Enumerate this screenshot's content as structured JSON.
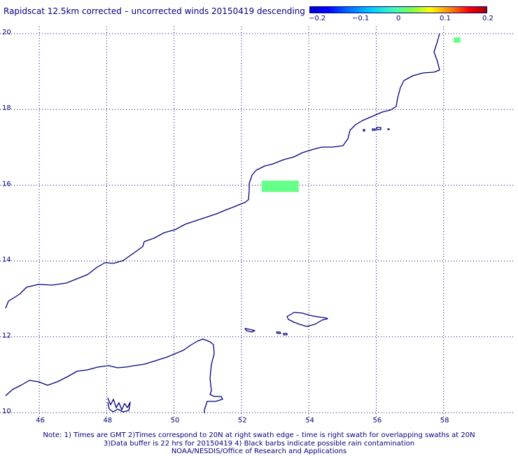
{
  "title": "Rapidscat 12.5km corrected – uncorrected winds 20150419 descending",
  "colorbar": {
    "tick_labels": [
      "−0.2",
      "−0.1",
      "0",
      "0.1",
      "0.2"
    ],
    "range": [
      -0.2,
      0.2
    ],
    "colormap": "rainbow (blue → cyan → green → yellow → red → dark red)"
  },
  "map": {
    "lon_range": [
      45,
      60
    ],
    "lat_range": [
      10,
      20
    ],
    "lon_ticks": [
      "46",
      "48",
      "50",
      "52",
      "54",
      "56",
      "58"
    ],
    "lat_ticks": [
      "10",
      "12",
      "14",
      "16",
      "18",
      "20"
    ],
    "grid": "dotted",
    "coastline_color": "#000080",
    "data_patches": [
      {
        "value": 0.0,
        "color": "#66ff88",
        "lon_min": 52.6,
        "lon_max": 53.7,
        "lat_min": 15.82,
        "lat_max": 16.12
      },
      {
        "value": 0.0,
        "color": "#66ff88",
        "lon_min": 58.3,
        "lon_max": 58.5,
        "lat_min": 19.76,
        "lat_max": 19.9
      }
    ]
  },
  "notes": [
    "Note: 1) Times are GMT 2)Times correspond to 20N at right swath edge – time is right swath for overlapping swaths at 20N",
    "3)Data buffer is 22 hrs for 20150419 4) Black barbs indicate possible rain contamination",
    "NOAA/NESDIS/Office of Research and Applications"
  ]
}
